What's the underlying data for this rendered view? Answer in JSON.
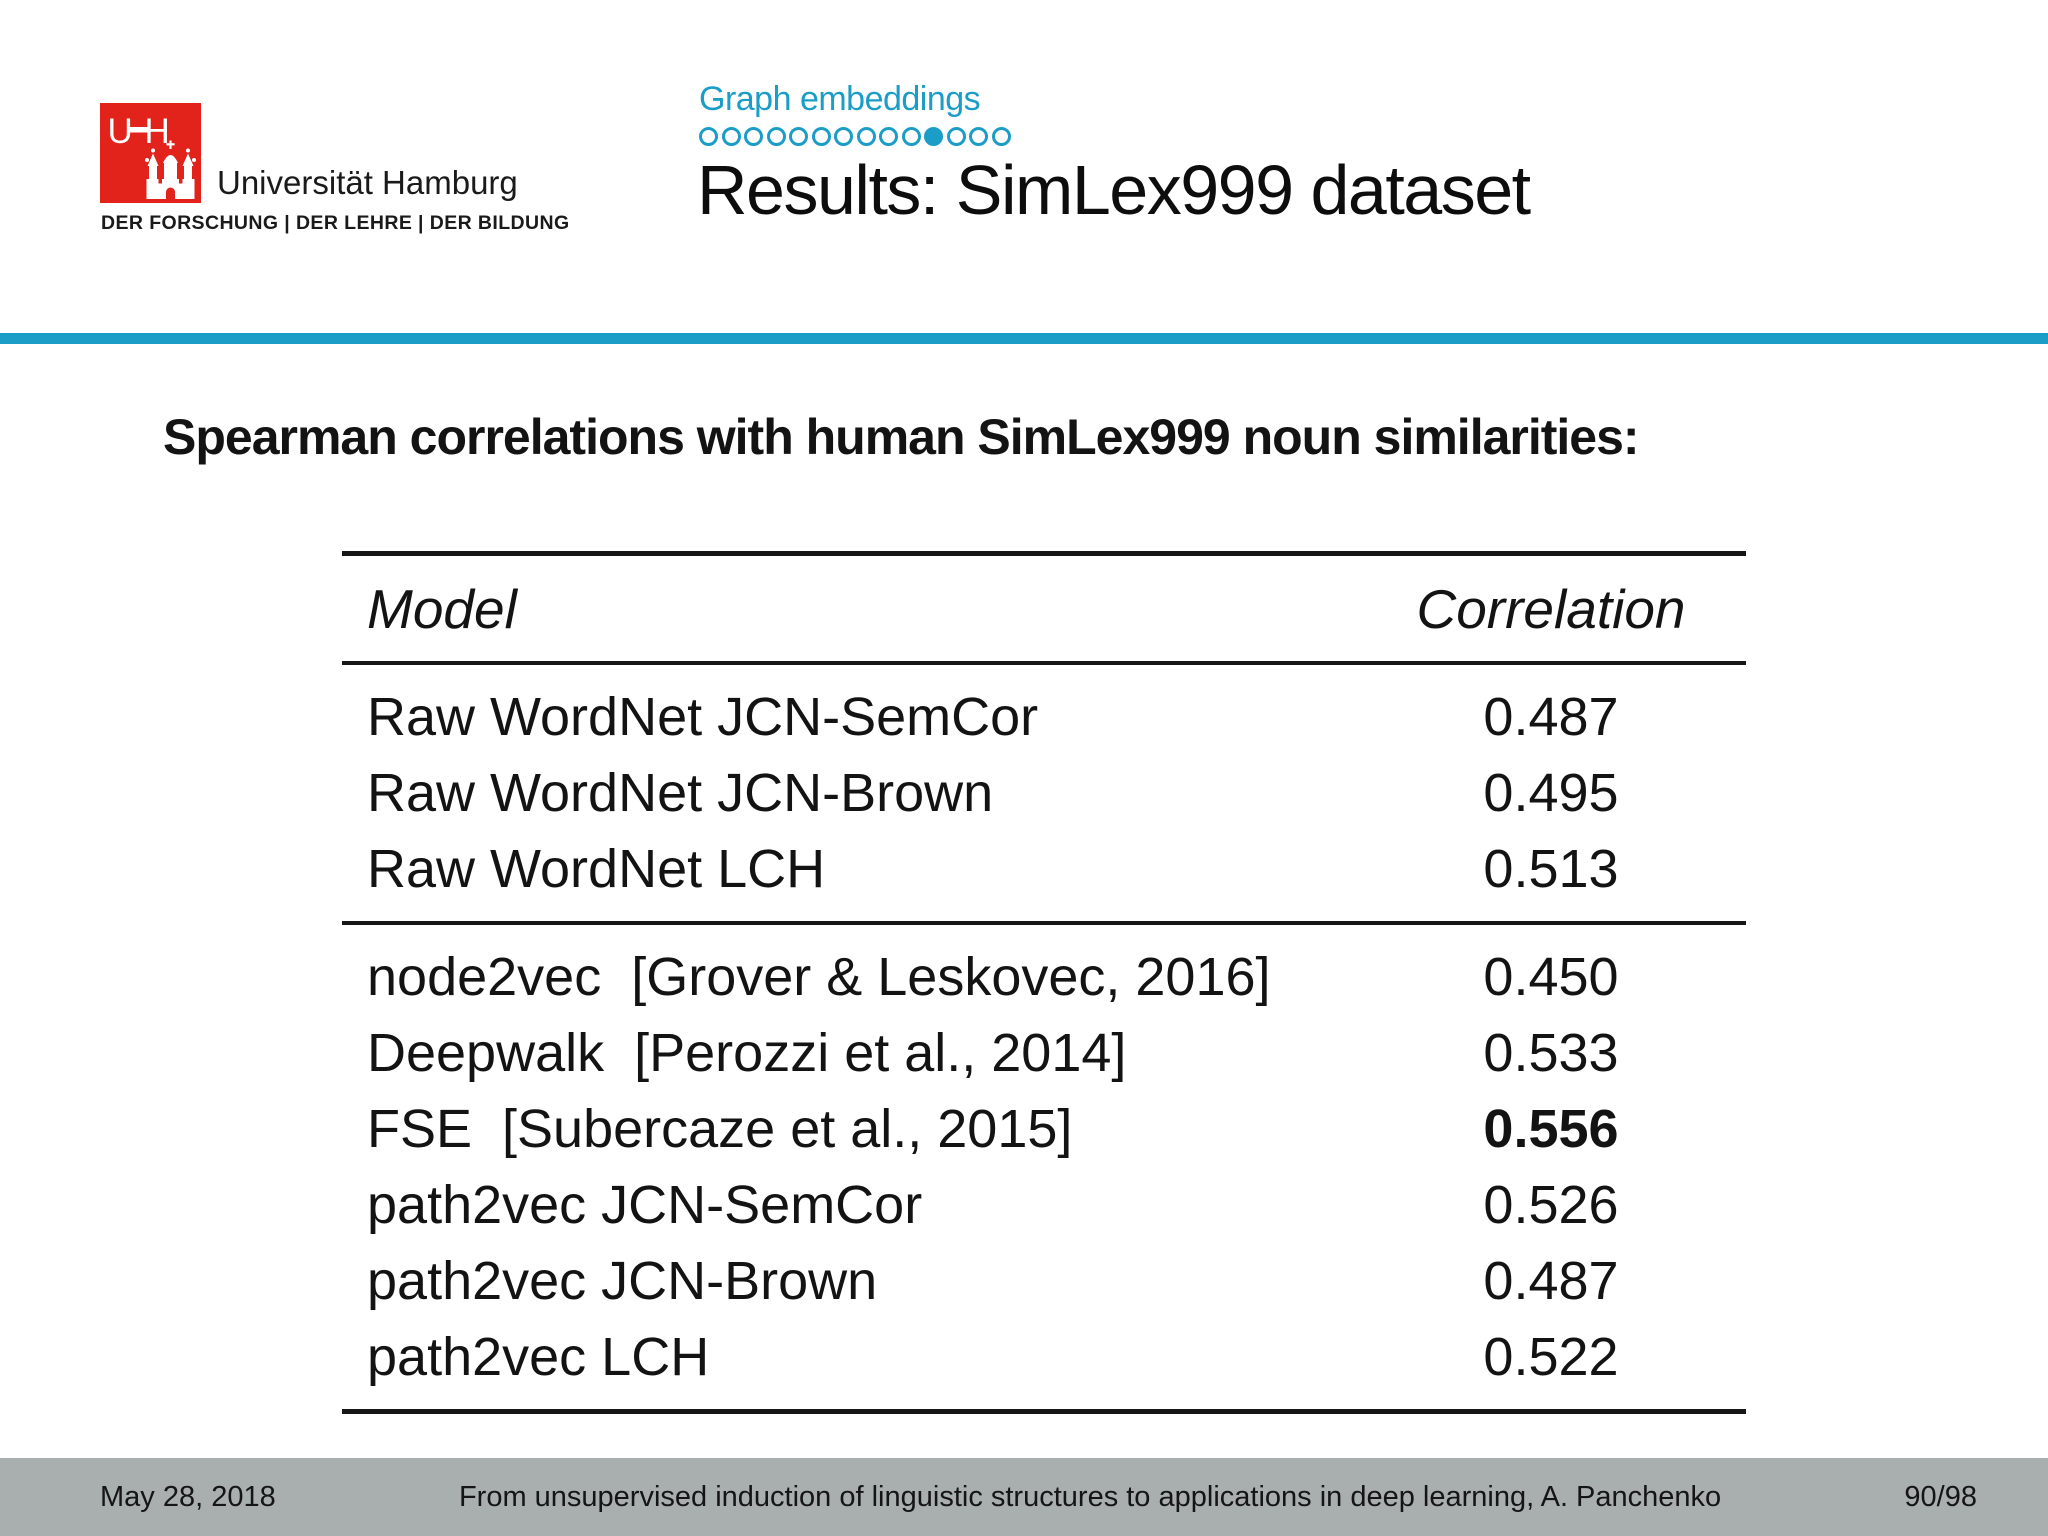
{
  "colors": {
    "accent": "#1b9dc7",
    "logo_red": "#e2231c",
    "footer_bg": "#a9afae"
  },
  "logo": {
    "mark_left": "U",
    "mark_right": "H",
    "institution": "Universität Hamburg",
    "motto": "DER FORSCHUNG | DER LEHRE | DER BILDUNG"
  },
  "header": {
    "section_label": "Graph embeddings",
    "progress_dots": {
      "total": 14,
      "active": 11
    },
    "title": "Results: SimLex999 dataset"
  },
  "body_heading": "Spearman correlations with human SimLex999 noun similarities:",
  "table": {
    "col_model": "Model",
    "col_correlation": "Correlation",
    "groups": [
      {
        "rows": [
          {
            "model": "Raw WordNet JCN-SemCor",
            "correlation": "0.487",
            "bold": false
          },
          {
            "model": "Raw WordNet JCN-Brown",
            "correlation": "0.495",
            "bold": false
          },
          {
            "model": "Raw WordNet LCH",
            "correlation": "0.513",
            "bold": false
          }
        ]
      },
      {
        "rows": [
          {
            "model": "node2vec  [Grover & Leskovec, 2016]",
            "correlation": "0.450",
            "bold": false
          },
          {
            "model": "Deepwalk  [Perozzi et al., 2014]",
            "correlation": "0.533",
            "bold": false
          },
          {
            "model": "FSE  [Subercaze et al., 2015]",
            "correlation": "0.556",
            "bold": true
          },
          {
            "model": "path2vec JCN-SemCor",
            "correlation": "0.526",
            "bold": false
          },
          {
            "model": "path2vec JCN-Brown",
            "correlation": "0.487",
            "bold": false
          },
          {
            "model": "path2vec LCH",
            "correlation": "0.522",
            "bold": false
          }
        ]
      }
    ]
  },
  "footer": {
    "date": "May 28, 2018",
    "talk_title": "From unsupervised induction of linguistic structures to applications in deep learning, A. Panchenko",
    "slide_number": "90/98"
  }
}
